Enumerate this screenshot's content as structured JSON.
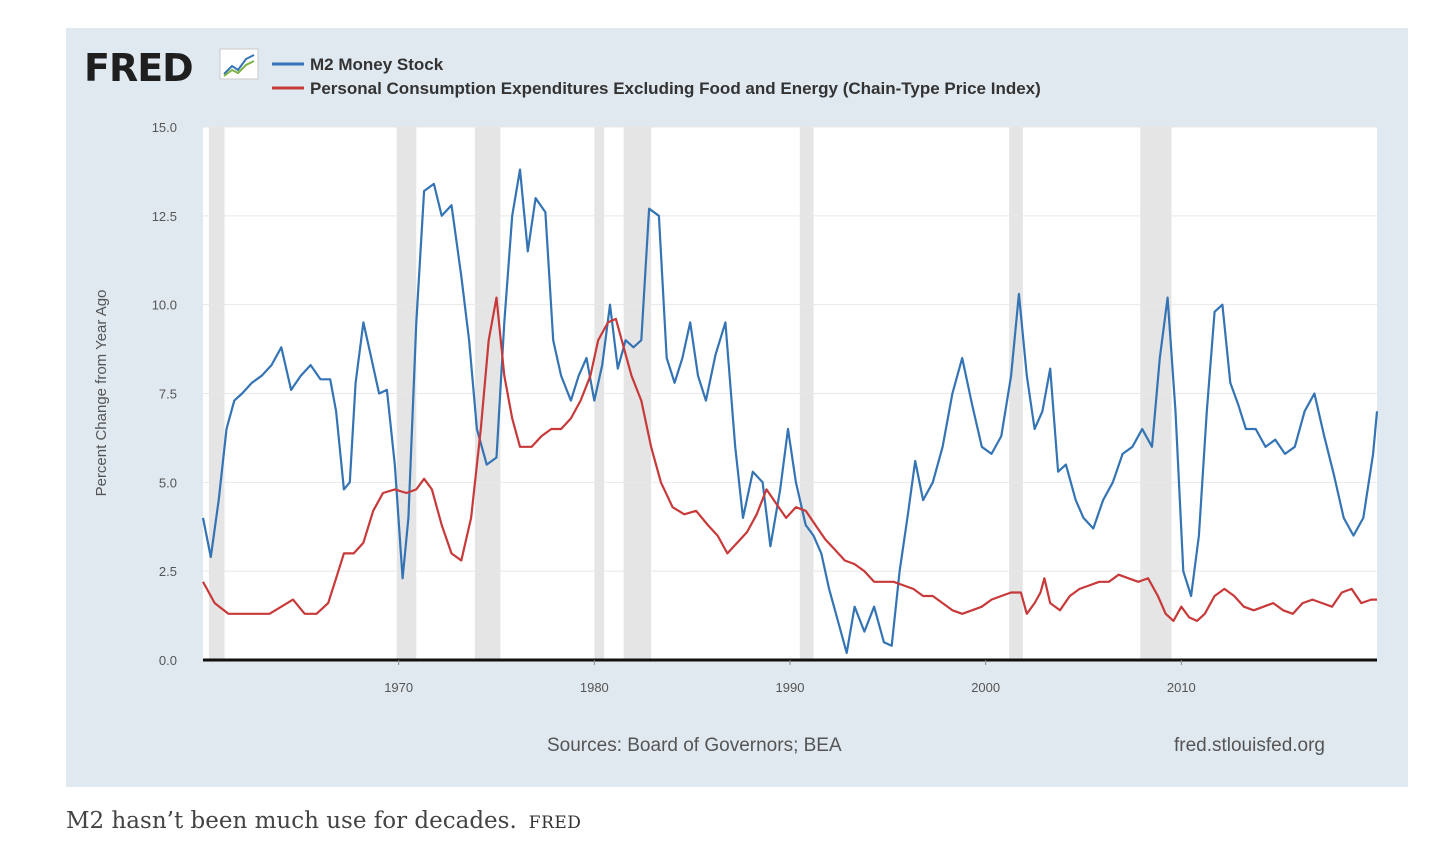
{
  "logo": {
    "text": "FRED"
  },
  "legend": [
    {
      "name": "M2 Money Stock",
      "color": "#3474b4"
    },
    {
      "name": "Personal Consumption Expenditures Excluding Food and Energy (Chain-Type Price Index)",
      "color": "#c8393a"
    }
  ],
  "footer": {
    "sources": "Sources: Board of Governors; BEA",
    "url": "fred.stlouisfed.org"
  },
  "caption": {
    "text": "M2 hasn’t been much use for decades.",
    "credit": "FRED"
  },
  "chart_data": {
    "type": "line",
    "ylabel": "Percent Change from Year Ago",
    "xlim": [
      1960,
      2020
    ],
    "ylim": [
      0,
      15
    ],
    "x_ticks": [
      "1970",
      "1980",
      "1990",
      "2000",
      "2010"
    ],
    "y_ticks": [
      "0.0",
      "2.5",
      "5.0",
      "7.5",
      "10.0",
      "12.5",
      "15.0"
    ],
    "grid": true,
    "legend_position": "top-left",
    "recessions": [
      [
        1960.3,
        1961.1
      ],
      [
        1969.9,
        1970.9
      ],
      [
        1973.9,
        1975.2
      ],
      [
        1980.0,
        1980.5
      ],
      [
        1981.5,
        1982.9
      ],
      [
        1990.5,
        1991.2
      ],
      [
        2001.2,
        2001.9
      ],
      [
        2007.9,
        2009.5
      ]
    ],
    "series": [
      {
        "name": "M2 Money Stock",
        "color": "#3474b4",
        "points": [
          [
            1960.0,
            4.0
          ],
          [
            1960.4,
            2.9
          ],
          [
            1960.8,
            4.5
          ],
          [
            1961.2,
            6.5
          ],
          [
            1961.6,
            7.3
          ],
          [
            1962.0,
            7.5
          ],
          [
            1962.5,
            7.8
          ],
          [
            1963.0,
            8.0
          ],
          [
            1963.5,
            8.3
          ],
          [
            1964.0,
            8.8
          ],
          [
            1964.5,
            7.6
          ],
          [
            1965.0,
            8.0
          ],
          [
            1965.5,
            8.3
          ],
          [
            1966.0,
            7.9
          ],
          [
            1966.5,
            7.9
          ],
          [
            1966.8,
            7.0
          ],
          [
            1967.2,
            4.8
          ],
          [
            1967.5,
            5.0
          ],
          [
            1967.8,
            7.8
          ],
          [
            1968.2,
            9.5
          ],
          [
            1968.6,
            8.5
          ],
          [
            1969.0,
            7.5
          ],
          [
            1969.4,
            7.6
          ],
          [
            1969.8,
            5.5
          ],
          [
            1970.2,
            2.3
          ],
          [
            1970.5,
            4.0
          ],
          [
            1970.9,
            9.5
          ],
          [
            1971.3,
            13.2
          ],
          [
            1971.8,
            13.4
          ],
          [
            1972.2,
            12.5
          ],
          [
            1972.7,
            12.8
          ],
          [
            1973.2,
            10.8
          ],
          [
            1973.6,
            9.0
          ],
          [
            1974.0,
            6.5
          ],
          [
            1974.5,
            5.5
          ],
          [
            1975.0,
            5.7
          ],
          [
            1975.4,
            9.5
          ],
          [
            1975.8,
            12.5
          ],
          [
            1976.2,
            13.8
          ],
          [
            1976.6,
            11.5
          ],
          [
            1977.0,
            13.0
          ],
          [
            1977.5,
            12.6
          ],
          [
            1977.9,
            9.0
          ],
          [
            1978.3,
            8.0
          ],
          [
            1978.8,
            7.3
          ],
          [
            1979.2,
            8.0
          ],
          [
            1979.6,
            8.5
          ],
          [
            1980.0,
            7.3
          ],
          [
            1980.4,
            8.3
          ],
          [
            1980.8,
            10.0
          ],
          [
            1981.2,
            8.2
          ],
          [
            1981.6,
            9.0
          ],
          [
            1982.0,
            8.8
          ],
          [
            1982.4,
            9.0
          ],
          [
            1982.8,
            12.7
          ],
          [
            1983.3,
            12.5
          ],
          [
            1983.7,
            8.5
          ],
          [
            1984.1,
            7.8
          ],
          [
            1984.5,
            8.5
          ],
          [
            1984.9,
            9.5
          ],
          [
            1985.3,
            8.0
          ],
          [
            1985.7,
            7.3
          ],
          [
            1986.2,
            8.6
          ],
          [
            1986.7,
            9.5
          ],
          [
            1987.2,
            6.0
          ],
          [
            1987.6,
            4.0
          ],
          [
            1988.1,
            5.3
          ],
          [
            1988.6,
            5.0
          ],
          [
            1989.0,
            3.2
          ],
          [
            1989.5,
            4.8
          ],
          [
            1989.9,
            6.5
          ],
          [
            1990.3,
            5.0
          ],
          [
            1990.8,
            3.8
          ],
          [
            1991.2,
            3.5
          ],
          [
            1991.6,
            3.0
          ],
          [
            1992.0,
            2.0
          ],
          [
            1992.5,
            1.0
          ],
          [
            1992.9,
            0.2
          ],
          [
            1993.3,
            1.5
          ],
          [
            1993.8,
            0.8
          ],
          [
            1994.3,
            1.5
          ],
          [
            1994.8,
            0.5
          ],
          [
            1995.2,
            0.4
          ],
          [
            1995.6,
            2.5
          ],
          [
            1996.0,
            4.0
          ],
          [
            1996.4,
            5.6
          ],
          [
            1996.8,
            4.5
          ],
          [
            1997.3,
            5.0
          ],
          [
            1997.8,
            6.0
          ],
          [
            1998.3,
            7.5
          ],
          [
            1998.8,
            8.5
          ],
          [
            1999.3,
            7.2
          ],
          [
            1999.8,
            6.0
          ],
          [
            2000.3,
            5.8
          ],
          [
            2000.8,
            6.3
          ],
          [
            2001.3,
            8.0
          ],
          [
            2001.7,
            10.3
          ],
          [
            2002.1,
            8.0
          ],
          [
            2002.5,
            6.5
          ],
          [
            2002.9,
            7.0
          ],
          [
            2003.3,
            8.2
          ],
          [
            2003.7,
            5.3
          ],
          [
            2004.1,
            5.5
          ],
          [
            2004.6,
            4.5
          ],
          [
            2005.0,
            4.0
          ],
          [
            2005.5,
            3.7
          ],
          [
            2006.0,
            4.5
          ],
          [
            2006.5,
            5.0
          ],
          [
            2007.0,
            5.8
          ],
          [
            2007.5,
            6.0
          ],
          [
            2008.0,
            6.5
          ],
          [
            2008.5,
            6.0
          ],
          [
            2008.9,
            8.5
          ],
          [
            2009.3,
            10.2
          ],
          [
            2009.7,
            7.0
          ],
          [
            2010.1,
            2.5
          ],
          [
            2010.5,
            1.8
          ],
          [
            2010.9,
            3.5
          ],
          [
            2011.3,
            7.0
          ],
          [
            2011.7,
            9.8
          ],
          [
            2012.1,
            10.0
          ],
          [
            2012.5,
            7.8
          ],
          [
            2012.9,
            7.2
          ],
          [
            2013.3,
            6.5
          ],
          [
            2013.8,
            6.5
          ],
          [
            2014.3,
            6.0
          ],
          [
            2014.8,
            6.2
          ],
          [
            2015.3,
            5.8
          ],
          [
            2015.8,
            6.0
          ],
          [
            2016.3,
            7.0
          ],
          [
            2016.8,
            7.5
          ],
          [
            2017.3,
            6.3
          ],
          [
            2017.8,
            5.2
          ],
          [
            2018.3,
            4.0
          ],
          [
            2018.8,
            3.5
          ],
          [
            2019.3,
            4.0
          ],
          [
            2019.8,
            5.8
          ],
          [
            2020.0,
            7.0
          ]
        ]
      },
      {
        "name": "Personal Consumption Expenditures Excluding Food and Energy (Chain-Type Price Index)",
        "color": "#c8393a",
        "points": [
          [
            1960.0,
            2.2
          ],
          [
            1960.6,
            1.6
          ],
          [
            1961.3,
            1.3
          ],
          [
            1962.0,
            1.3
          ],
          [
            1962.7,
            1.3
          ],
          [
            1963.4,
            1.3
          ],
          [
            1964.0,
            1.5
          ],
          [
            1964.6,
            1.7
          ],
          [
            1965.2,
            1.3
          ],
          [
            1965.8,
            1.3
          ],
          [
            1966.4,
            1.6
          ],
          [
            1966.8,
            2.3
          ],
          [
            1967.2,
            3.0
          ],
          [
            1967.7,
            3.0
          ],
          [
            1968.2,
            3.3
          ],
          [
            1968.7,
            4.2
          ],
          [
            1969.2,
            4.7
          ],
          [
            1969.8,
            4.8
          ],
          [
            1970.4,
            4.7
          ],
          [
            1970.9,
            4.8
          ],
          [
            1971.3,
            5.1
          ],
          [
            1971.7,
            4.8
          ],
          [
            1972.2,
            3.8
          ],
          [
            1972.7,
            3.0
          ],
          [
            1973.2,
            2.8
          ],
          [
            1973.7,
            4.0
          ],
          [
            1974.2,
            6.5
          ],
          [
            1974.6,
            9.0
          ],
          [
            1975.0,
            10.2
          ],
          [
            1975.4,
            8.0
          ],
          [
            1975.8,
            6.8
          ],
          [
            1976.2,
            6.0
          ],
          [
            1976.8,
            6.0
          ],
          [
            1977.3,
            6.3
          ],
          [
            1977.8,
            6.5
          ],
          [
            1978.3,
            6.5
          ],
          [
            1978.8,
            6.8
          ],
          [
            1979.3,
            7.3
          ],
          [
            1979.8,
            8.0
          ],
          [
            1980.2,
            9.0
          ],
          [
            1980.7,
            9.5
          ],
          [
            1981.1,
            9.6
          ],
          [
            1981.5,
            8.8
          ],
          [
            1981.9,
            8.0
          ],
          [
            1982.4,
            7.3
          ],
          [
            1982.9,
            6.0
          ],
          [
            1983.4,
            5.0
          ],
          [
            1984.0,
            4.3
          ],
          [
            1984.6,
            4.1
          ],
          [
            1985.2,
            4.2
          ],
          [
            1985.8,
            3.8
          ],
          [
            1986.3,
            3.5
          ],
          [
            1986.8,
            3.0
          ],
          [
            1987.3,
            3.3
          ],
          [
            1987.8,
            3.6
          ],
          [
            1988.3,
            4.1
          ],
          [
            1988.8,
            4.8
          ],
          [
            1989.3,
            4.4
          ],
          [
            1989.8,
            4.0
          ],
          [
            1990.3,
            4.3
          ],
          [
            1990.8,
            4.2
          ],
          [
            1991.3,
            3.8
          ],
          [
            1991.8,
            3.4
          ],
          [
            1992.3,
            3.1
          ],
          [
            1992.8,
            2.8
          ],
          [
            1993.3,
            2.7
          ],
          [
            1993.8,
            2.5
          ],
          [
            1994.3,
            2.2
          ],
          [
            1994.8,
            2.2
          ],
          [
            1995.3,
            2.2
          ],
          [
            1995.8,
            2.1
          ],
          [
            1996.3,
            2.0
          ],
          [
            1996.8,
            1.8
          ],
          [
            1997.3,
            1.8
          ],
          [
            1997.8,
            1.6
          ],
          [
            1998.3,
            1.4
          ],
          [
            1998.8,
            1.3
          ],
          [
            1999.3,
            1.4
          ],
          [
            1999.8,
            1.5
          ],
          [
            2000.3,
            1.7
          ],
          [
            2000.8,
            1.8
          ],
          [
            2001.3,
            1.9
          ],
          [
            2001.8,
            1.9
          ],
          [
            2002.1,
            1.3
          ],
          [
            2002.5,
            1.6
          ],
          [
            2002.8,
            1.9
          ],
          [
            2003.0,
            2.3
          ],
          [
            2003.3,
            1.6
          ],
          [
            2003.8,
            1.4
          ],
          [
            2004.3,
            1.8
          ],
          [
            2004.8,
            2.0
          ],
          [
            2005.3,
            2.1
          ],
          [
            2005.8,
            2.2
          ],
          [
            2006.3,
            2.2
          ],
          [
            2006.8,
            2.4
          ],
          [
            2007.3,
            2.3
          ],
          [
            2007.8,
            2.2
          ],
          [
            2008.3,
            2.3
          ],
          [
            2008.8,
            1.8
          ],
          [
            2009.2,
            1.3
          ],
          [
            2009.6,
            1.1
          ],
          [
            2010.0,
            1.5
          ],
          [
            2010.4,
            1.2
          ],
          [
            2010.8,
            1.1
          ],
          [
            2011.2,
            1.3
          ],
          [
            2011.7,
            1.8
          ],
          [
            2012.2,
            2.0
          ],
          [
            2012.7,
            1.8
          ],
          [
            2013.2,
            1.5
          ],
          [
            2013.7,
            1.4
          ],
          [
            2014.2,
            1.5
          ],
          [
            2014.7,
            1.6
          ],
          [
            2015.2,
            1.4
          ],
          [
            2015.7,
            1.3
          ],
          [
            2016.2,
            1.6
          ],
          [
            2016.7,
            1.7
          ],
          [
            2017.2,
            1.6
          ],
          [
            2017.7,
            1.5
          ],
          [
            2018.2,
            1.9
          ],
          [
            2018.7,
            2.0
          ],
          [
            2019.2,
            1.6
          ],
          [
            2019.7,
            1.7
          ],
          [
            2020.0,
            1.7
          ]
        ]
      }
    ]
  }
}
